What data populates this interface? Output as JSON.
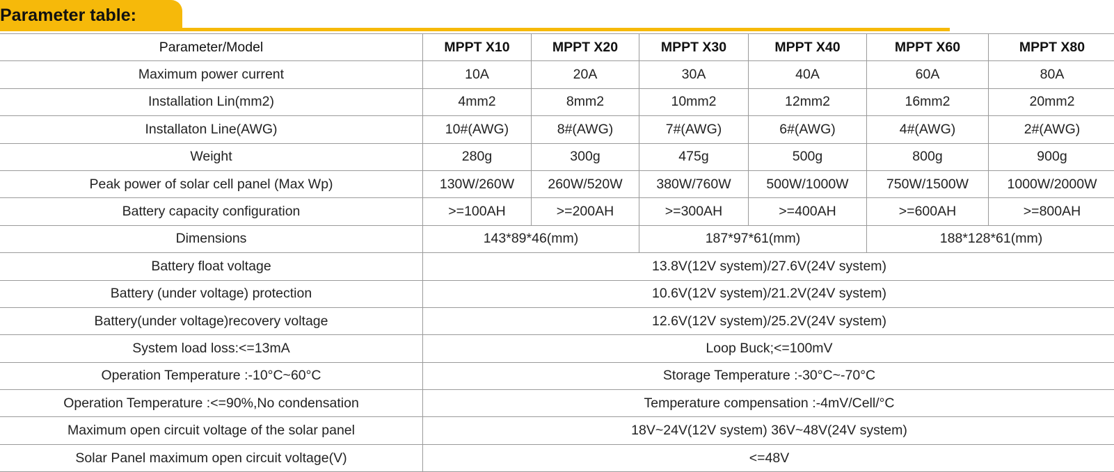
{
  "header": {
    "title": "Parameter table:"
  },
  "table": {
    "columns": [
      "Parameter/Model",
      "MPPT X10",
      "MPPT X20",
      "MPPT X30",
      "MPPT X40",
      "MPPT X60",
      "MPPT X80"
    ],
    "rows": [
      [
        "Maximum power current",
        "10A",
        "20A",
        "30A",
        "40A",
        "60A",
        "80A"
      ],
      [
        "Installation Lin(mm2)",
        "4mm2",
        "8mm2",
        "10mm2",
        "12mm2",
        "16mm2",
        "20mm2"
      ],
      [
        "Installaton Line(AWG)",
        "10#(AWG)",
        "8#(AWG)",
        "7#(AWG)",
        "6#(AWG)",
        "4#(AWG)",
        "2#(AWG)"
      ],
      [
        "Weight",
        "280g",
        "300g",
        "475g",
        "500g",
        "800g",
        "900g"
      ],
      [
        "Peak power of solar cell panel (Max Wp)",
        "130W/260W",
        "260W/520W",
        "380W/760W",
        "500W/1000W",
        "750W/1500W",
        "1000W/2000W"
      ],
      [
        "Battery capacity configuration",
        ">=100AH",
        ">=200AH",
        ">=300AH",
        ">=400AH",
        ">=600AH",
        ">=800AH"
      ],
      [
        "Dimensions",
        "143*89*46(mm)",
        "187*97*61(mm)",
        "188*128*61(mm)"
      ],
      [
        "Battery float voltage",
        "13.8V(12V system)/27.6V(24V system)"
      ],
      [
        "Battery (under voltage) protection",
        "10.6V(12V system)/21.2V(24V system)"
      ],
      [
        "Battery(under voltage)recovery voltage",
        "12.6V(12V system)/25.2V(24V system)"
      ],
      [
        "System load loss:<=13mA",
        "Loop Buck;<=100mV"
      ],
      [
        "Operation Temperature :-10°C~60°C",
        "Storage Temperature :-30°C~-70°C"
      ],
      [
        "Operation Temperature :<=90%,No condensation",
        "Temperature compensation :-4mV/Cell/°C"
      ],
      [
        "Maximum open circuit voltage of the solar panel",
        "18V~24V(12V system) 36V~48V(24V system)"
      ],
      [
        "Solar Panel maximum open circuit voltage(V)",
        "<=48V"
      ]
    ]
  }
}
